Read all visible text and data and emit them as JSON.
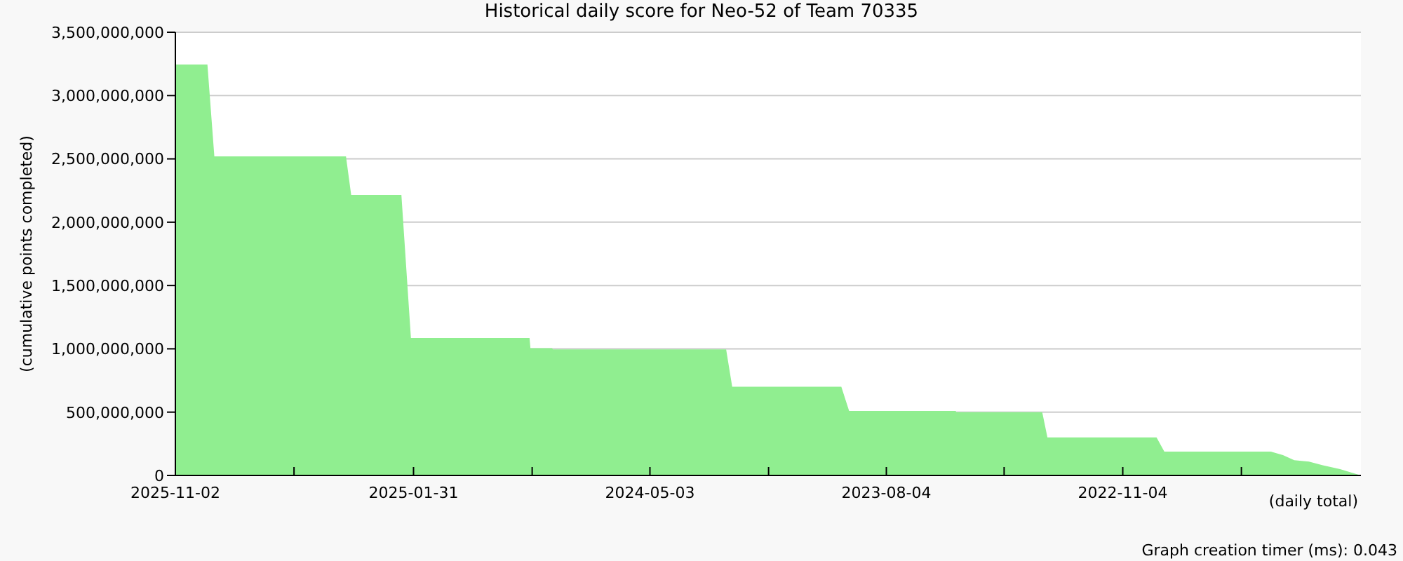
{
  "chart_data": {
    "type": "area",
    "title": "Historical daily score for Neo-52 of Team 70335",
    "xlabel": "(daily total)",
    "ylabel": "(cumulative points completed)",
    "annotations": [
      "Graph creation timer (ms): 0.043"
    ],
    "x": [
      "2025-11-02",
      "2025-09-26",
      "2025-09-18",
      "2025-04-19",
      "2025-04-13",
      "2025-02-14",
      "2025-02-03",
      "2024-09-19",
      "2024-09-18",
      "2024-08-24",
      "2024-08-23",
      "2024-02-05",
      "2024-01-29",
      "2023-09-25",
      "2023-09-16",
      "2023-05-16",
      "2023-05-15",
      "2023-02-05",
      "2023-01-30",
      "2022-09-26",
      "2022-09-17",
      "2022-05-17",
      "2022-05-03",
      "2022-04-20",
      "2022-04-03",
      "2022-03-18",
      "2022-02-26",
      "2022-02-02"
    ],
    "series": [
      {
        "color": "#90ee90",
        "values": [
          3245000000,
          3245000000,
          2520000000,
          2520000000,
          2215000000,
          2215000000,
          1085000000,
          1085000000,
          1005000000,
          1005000000,
          995000000,
          995000000,
          700000000,
          700000000,
          509000000,
          509000000,
          500000000,
          500000000,
          300000000,
          300000000,
          188000000,
          188000000,
          160000000,
          120000000,
          110000000,
          80000000,
          50000000,
          0
        ]
      }
    ],
    "xlim": [
      "2025-11-02",
      "2022-02-02"
    ],
    "xticks": [
      {
        "value": "2025-11-02",
        "label": "2025-11-02"
      },
      {
        "value": "2025-06-18",
        "label": null
      },
      {
        "value": "2025-01-31",
        "label": "2025-01-31"
      },
      {
        "value": "2024-09-16",
        "label": null
      },
      {
        "value": "2024-05-03",
        "label": "2024-05-03"
      },
      {
        "value": "2023-12-18",
        "label": null
      },
      {
        "value": "2023-08-04",
        "label": "2023-08-04"
      },
      {
        "value": "2023-03-21",
        "label": null
      },
      {
        "value": "2022-11-04",
        "label": "2022-11-04"
      },
      {
        "value": "2022-06-20",
        "label": null
      }
    ],
    "ylim": [
      0,
      3500000000
    ],
    "yticks": [
      {
        "value": 0,
        "label": "0"
      },
      {
        "value": 500000000,
        "label": "500,000,000"
      },
      {
        "value": 1000000000,
        "label": "1,000,000,000"
      },
      {
        "value": 1500000000,
        "label": "1,500,000,000"
      },
      {
        "value": 2000000000,
        "label": "2,000,000,000"
      },
      {
        "value": 2500000000,
        "label": "2,500,000,000"
      },
      {
        "value": 3000000000,
        "label": "3,000,000,000"
      },
      {
        "value": 3500000000,
        "label": "3,500,000,000"
      }
    ],
    "grid": "y"
  }
}
